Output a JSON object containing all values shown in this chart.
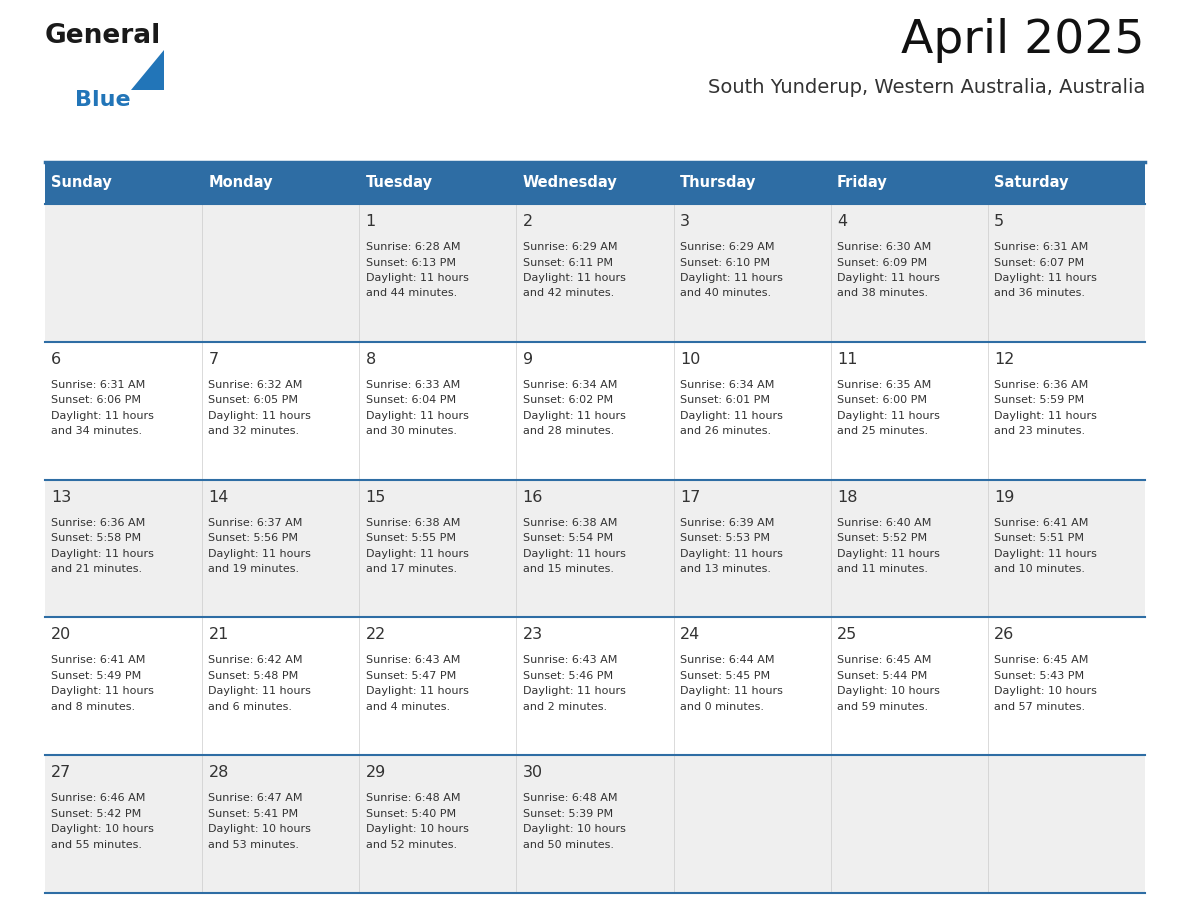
{
  "title": "April 2025",
  "subtitle": "South Yunderup, Western Australia, Australia",
  "header_bg_color": "#2E6DA4",
  "header_text_color": "#FFFFFF",
  "cell_bg_color_odd": "#EFEFEF",
  "cell_bg_color_even": "#FFFFFF",
  "divider_color": "#2E6DA4",
  "text_color": "#333333",
  "days_of_week": [
    "Sunday",
    "Monday",
    "Tuesday",
    "Wednesday",
    "Thursday",
    "Friday",
    "Saturday"
  ],
  "logo_color1": "#1a1a1a",
  "logo_color2": "#2275B8",
  "calendar_data": [
    {
      "day": null,
      "col": 0,
      "row": 0
    },
    {
      "day": null,
      "col": 1,
      "row": 0
    },
    {
      "day": 1,
      "col": 2,
      "row": 0,
      "sunrise": "6:28 AM",
      "sunset": "6:13 PM",
      "daylight": "11 hours",
      "daylight2": "and 44 minutes."
    },
    {
      "day": 2,
      "col": 3,
      "row": 0,
      "sunrise": "6:29 AM",
      "sunset": "6:11 PM",
      "daylight": "11 hours",
      "daylight2": "and 42 minutes."
    },
    {
      "day": 3,
      "col": 4,
      "row": 0,
      "sunrise": "6:29 AM",
      "sunset": "6:10 PM",
      "daylight": "11 hours",
      "daylight2": "and 40 minutes."
    },
    {
      "day": 4,
      "col": 5,
      "row": 0,
      "sunrise": "6:30 AM",
      "sunset": "6:09 PM",
      "daylight": "11 hours",
      "daylight2": "and 38 minutes."
    },
    {
      "day": 5,
      "col": 6,
      "row": 0,
      "sunrise": "6:31 AM",
      "sunset": "6:07 PM",
      "daylight": "11 hours",
      "daylight2": "and 36 minutes."
    },
    {
      "day": 6,
      "col": 0,
      "row": 1,
      "sunrise": "6:31 AM",
      "sunset": "6:06 PM",
      "daylight": "11 hours",
      "daylight2": "and 34 minutes."
    },
    {
      "day": 7,
      "col": 1,
      "row": 1,
      "sunrise": "6:32 AM",
      "sunset": "6:05 PM",
      "daylight": "11 hours",
      "daylight2": "and 32 minutes."
    },
    {
      "day": 8,
      "col": 2,
      "row": 1,
      "sunrise": "6:33 AM",
      "sunset": "6:04 PM",
      "daylight": "11 hours",
      "daylight2": "and 30 minutes."
    },
    {
      "day": 9,
      "col": 3,
      "row": 1,
      "sunrise": "6:34 AM",
      "sunset": "6:02 PM",
      "daylight": "11 hours",
      "daylight2": "and 28 minutes."
    },
    {
      "day": 10,
      "col": 4,
      "row": 1,
      "sunrise": "6:34 AM",
      "sunset": "6:01 PM",
      "daylight": "11 hours",
      "daylight2": "and 26 minutes."
    },
    {
      "day": 11,
      "col": 5,
      "row": 1,
      "sunrise": "6:35 AM",
      "sunset": "6:00 PM",
      "daylight": "11 hours",
      "daylight2": "and 25 minutes."
    },
    {
      "day": 12,
      "col": 6,
      "row": 1,
      "sunrise": "6:36 AM",
      "sunset": "5:59 PM",
      "daylight": "11 hours",
      "daylight2": "and 23 minutes."
    },
    {
      "day": 13,
      "col": 0,
      "row": 2,
      "sunrise": "6:36 AM",
      "sunset": "5:58 PM",
      "daylight": "11 hours",
      "daylight2": "and 21 minutes."
    },
    {
      "day": 14,
      "col": 1,
      "row": 2,
      "sunrise": "6:37 AM",
      "sunset": "5:56 PM",
      "daylight": "11 hours",
      "daylight2": "and 19 minutes."
    },
    {
      "day": 15,
      "col": 2,
      "row": 2,
      "sunrise": "6:38 AM",
      "sunset": "5:55 PM",
      "daylight": "11 hours",
      "daylight2": "and 17 minutes."
    },
    {
      "day": 16,
      "col": 3,
      "row": 2,
      "sunrise": "6:38 AM",
      "sunset": "5:54 PM",
      "daylight": "11 hours",
      "daylight2": "and 15 minutes."
    },
    {
      "day": 17,
      "col": 4,
      "row": 2,
      "sunrise": "6:39 AM",
      "sunset": "5:53 PM",
      "daylight": "11 hours",
      "daylight2": "and 13 minutes."
    },
    {
      "day": 18,
      "col": 5,
      "row": 2,
      "sunrise": "6:40 AM",
      "sunset": "5:52 PM",
      "daylight": "11 hours",
      "daylight2": "and 11 minutes."
    },
    {
      "day": 19,
      "col": 6,
      "row": 2,
      "sunrise": "6:41 AM",
      "sunset": "5:51 PM",
      "daylight": "11 hours",
      "daylight2": "and 10 minutes."
    },
    {
      "day": 20,
      "col": 0,
      "row": 3,
      "sunrise": "6:41 AM",
      "sunset": "5:49 PM",
      "daylight": "11 hours",
      "daylight2": "and 8 minutes."
    },
    {
      "day": 21,
      "col": 1,
      "row": 3,
      "sunrise": "6:42 AM",
      "sunset": "5:48 PM",
      "daylight": "11 hours",
      "daylight2": "and 6 minutes."
    },
    {
      "day": 22,
      "col": 2,
      "row": 3,
      "sunrise": "6:43 AM",
      "sunset": "5:47 PM",
      "daylight": "11 hours",
      "daylight2": "and 4 minutes."
    },
    {
      "day": 23,
      "col": 3,
      "row": 3,
      "sunrise": "6:43 AM",
      "sunset": "5:46 PM",
      "daylight": "11 hours",
      "daylight2": "and 2 minutes."
    },
    {
      "day": 24,
      "col": 4,
      "row": 3,
      "sunrise": "6:44 AM",
      "sunset": "5:45 PM",
      "daylight": "11 hours",
      "daylight2": "and 0 minutes."
    },
    {
      "day": 25,
      "col": 5,
      "row": 3,
      "sunrise": "6:45 AM",
      "sunset": "5:44 PM",
      "daylight": "10 hours",
      "daylight2": "and 59 minutes."
    },
    {
      "day": 26,
      "col": 6,
      "row": 3,
      "sunrise": "6:45 AM",
      "sunset": "5:43 PM",
      "daylight": "10 hours",
      "daylight2": "and 57 minutes."
    },
    {
      "day": 27,
      "col": 0,
      "row": 4,
      "sunrise": "6:46 AM",
      "sunset": "5:42 PM",
      "daylight": "10 hours",
      "daylight2": "and 55 minutes."
    },
    {
      "day": 28,
      "col": 1,
      "row": 4,
      "sunrise": "6:47 AM",
      "sunset": "5:41 PM",
      "daylight": "10 hours",
      "daylight2": "and 53 minutes."
    },
    {
      "day": 29,
      "col": 2,
      "row": 4,
      "sunrise": "6:48 AM",
      "sunset": "5:40 PM",
      "daylight": "10 hours",
      "daylight2": "and 52 minutes."
    },
    {
      "day": 30,
      "col": 3,
      "row": 4,
      "sunrise": "6:48 AM",
      "sunset": "5:39 PM",
      "daylight": "10 hours",
      "daylight2": "and 50 minutes."
    },
    {
      "day": null,
      "col": 4,
      "row": 4
    },
    {
      "day": null,
      "col": 5,
      "row": 4
    },
    {
      "day": null,
      "col": 6,
      "row": 4
    }
  ]
}
